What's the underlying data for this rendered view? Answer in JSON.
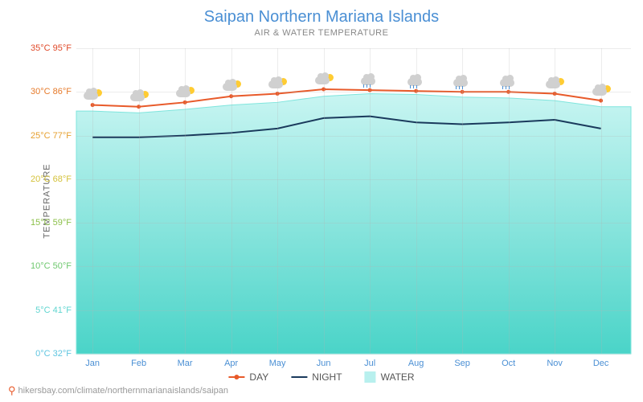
{
  "title": "Saipan Northern Mariana Islands",
  "subtitle": "AIR & WATER TEMPERATURE",
  "y_axis_label": "TEMPERATURE",
  "attribution": "hikersbay.com/climate/northernmarianaislands/saipan",
  "legend": {
    "day": "DAY",
    "night": "NIGHT",
    "water": "WATER"
  },
  "chart": {
    "type": "line-area",
    "y_min": 0,
    "y_max": 35,
    "y_ticks": [
      {
        "c": 0,
        "f": 32,
        "label": "0°C 32°F",
        "color": "#5fc5e0"
      },
      {
        "c": 5,
        "f": 41,
        "label": "5°C 41°F",
        "color": "#5fd5d0"
      },
      {
        "c": 10,
        "f": 50,
        "label": "10°C 50°F",
        "color": "#6ec86e"
      },
      {
        "c": 15,
        "f": 59,
        "label": "15°C 59°F",
        "color": "#8cc04a"
      },
      {
        "c": 20,
        "f": 68,
        "label": "20°C 68°F",
        "color": "#d4c23a"
      },
      {
        "c": 25,
        "f": 77,
        "label": "25°C 77°F",
        "color": "#e6a030"
      },
      {
        "c": 30,
        "f": 86,
        "label": "30°C 86°F",
        "color": "#e67a2a"
      },
      {
        "c": 35,
        "f": 95,
        "label": "35°C 95°F",
        "color": "#e04a2a"
      }
    ],
    "months": [
      "Jan",
      "Feb",
      "Mar",
      "Apr",
      "May",
      "Jun",
      "Jul",
      "Aug",
      "Sep",
      "Oct",
      "Nov",
      "Dec"
    ],
    "series": {
      "day": {
        "values": [
          28.5,
          28.3,
          28.8,
          29.5,
          29.8,
          30.3,
          30.2,
          30.1,
          30.0,
          30.0,
          29.8,
          29.0
        ],
        "color": "#e85a2a",
        "line_width": 2,
        "marker": "circle",
        "marker_size": 5
      },
      "night": {
        "values": [
          24.8,
          24.8,
          25.0,
          25.3,
          25.8,
          27.0,
          27.2,
          26.5,
          26.3,
          26.5,
          26.8,
          25.8
        ],
        "color": "#1a3a5c",
        "line_width": 2
      },
      "water": {
        "values": [
          27.8,
          27.6,
          28.0,
          28.5,
          28.8,
          29.5,
          29.8,
          29.7,
          29.4,
          29.3,
          29.0,
          28.3
        ],
        "fill_top": "#c8f5f2",
        "fill_bottom": "#4ad4c8",
        "line_color": "#7fe5dd",
        "line_width": 1
      }
    },
    "weather_icons": [
      "partly",
      "partly",
      "partly",
      "partly",
      "partly",
      "partly",
      "rain",
      "rain",
      "rain",
      "rain",
      "partly",
      "partly"
    ],
    "background": "#ffffff",
    "grid_color": "rgba(180,180,180,0.25)",
    "x_tick_color": "#4a8fd4"
  }
}
